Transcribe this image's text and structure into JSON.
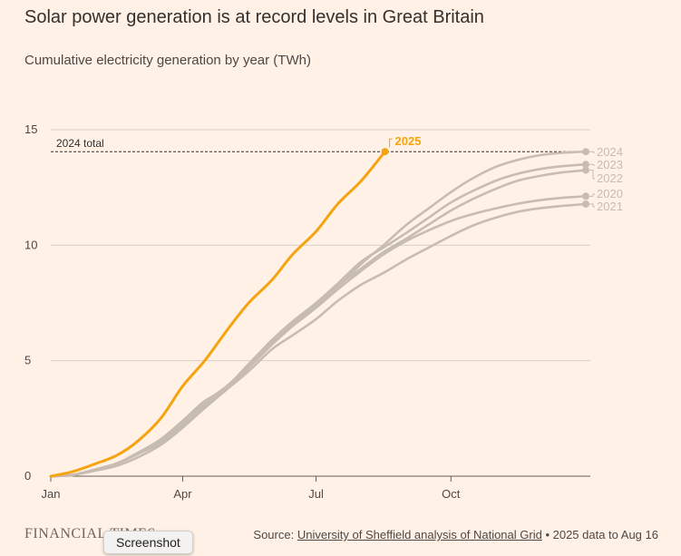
{
  "title": "Solar power generation is at record levels in Great Britain",
  "subtitle": "Cumulative electricity generation by year (TWh)",
  "footer": {
    "logo": "FINANCIAL TIMES",
    "source_prefix": "Source: ",
    "source_link": "University of Sheffield analysis of National Grid",
    "source_suffix": " • 2025 data to Aug 16"
  },
  "tooltip": {
    "label": "Screenshot"
  },
  "colors": {
    "highlight": "#f5a30f",
    "other": "#c7bcb2",
    "grid": "#d9cfc5",
    "axis": "#66605c"
  },
  "chart_data": {
    "type": "line",
    "title": "Solar power generation is at record levels in Great Britain",
    "subtitle": "Cumulative electricity generation by year (TWh)",
    "xlabel": "",
    "ylabel": "",
    "xlim": [
      0,
      365
    ],
    "ylim": [
      0,
      15
    ],
    "x_ticks": [
      {
        "value": 0,
        "label": "Jan"
      },
      {
        "value": 90,
        "label": "Apr"
      },
      {
        "value": 181,
        "label": "Jul"
      },
      {
        "value": 273,
        "label": "Oct"
      }
    ],
    "y_ticks": [
      {
        "value": 0,
        "label": "0"
      },
      {
        "value": 5,
        "label": "5"
      },
      {
        "value": 10,
        "label": "10"
      },
      {
        "value": 15,
        "label": "15"
      }
    ],
    "reference_line": {
      "value": 14.05,
      "label": "2024 total"
    },
    "x_units": "day of year",
    "series": [
      {
        "name": "2021",
        "highlight": false,
        "x": [
          0,
          15,
          31,
          45,
          59,
          75,
          90,
          105,
          120,
          135,
          151,
          165,
          181,
          196,
          212,
          227,
          243,
          258,
          273,
          288,
          304,
          319,
          334,
          349,
          365
        ],
        "y": [
          0,
          0.05,
          0.25,
          0.45,
          0.8,
          1.35,
          2.1,
          2.95,
          3.75,
          4.55,
          5.5,
          6.1,
          6.8,
          7.6,
          8.3,
          8.8,
          9.4,
          9.9,
          10.4,
          10.85,
          11.2,
          11.45,
          11.6,
          11.7,
          11.78
        ]
      },
      {
        "name": "2022",
        "highlight": false,
        "x": [
          0,
          15,
          31,
          45,
          59,
          75,
          90,
          105,
          120,
          135,
          151,
          165,
          181,
          196,
          212,
          227,
          243,
          258,
          273,
          288,
          304,
          319,
          334,
          349,
          365
        ],
        "y": [
          0,
          0.05,
          0.3,
          0.55,
          0.95,
          1.55,
          2.35,
          3.2,
          3.9,
          4.8,
          5.9,
          6.6,
          7.4,
          8.25,
          9.0,
          9.7,
          10.3,
          10.9,
          11.5,
          12.0,
          12.45,
          12.8,
          13.0,
          13.15,
          13.25
        ]
      },
      {
        "name": "2023",
        "highlight": false,
        "x": [
          0,
          15,
          31,
          45,
          59,
          75,
          90,
          105,
          120,
          135,
          151,
          165,
          181,
          196,
          212,
          227,
          243,
          258,
          273,
          288,
          304,
          319,
          334,
          349,
          365
        ],
        "y": [
          0,
          0.05,
          0.3,
          0.55,
          0.95,
          1.45,
          2.2,
          3.05,
          3.85,
          4.85,
          5.9,
          6.7,
          7.5,
          8.35,
          9.3,
          9.9,
          10.55,
          11.2,
          11.85,
          12.35,
          12.8,
          13.1,
          13.3,
          13.42,
          13.5
        ]
      },
      {
        "name": "2020",
        "highlight": false,
        "x": [
          0,
          15,
          31,
          45,
          59,
          75,
          90,
          105,
          120,
          135,
          151,
          165,
          181,
          196,
          212,
          227,
          243,
          258,
          273,
          288,
          304,
          319,
          334,
          349,
          365
        ],
        "y": [
          0,
          0.05,
          0.3,
          0.55,
          0.95,
          1.5,
          2.3,
          3.15,
          3.85,
          4.85,
          5.8,
          6.55,
          7.3,
          8.1,
          8.9,
          9.6,
          10.2,
          10.65,
          11.05,
          11.35,
          11.6,
          11.8,
          11.95,
          12.05,
          12.12
        ]
      },
      {
        "name": "2024",
        "highlight": false,
        "x": [
          0,
          15,
          31,
          45,
          59,
          75,
          90,
          105,
          120,
          135,
          151,
          165,
          181,
          196,
          212,
          227,
          243,
          258,
          273,
          288,
          304,
          319,
          334,
          349,
          365
        ],
        "y": [
          0,
          0.05,
          0.3,
          0.55,
          1.0,
          1.6,
          2.4,
          3.25,
          3.8,
          4.7,
          5.7,
          6.5,
          7.3,
          8.2,
          9.2,
          10.0,
          10.9,
          11.6,
          12.3,
          12.9,
          13.4,
          13.7,
          13.9,
          14.0,
          14.05
        ]
      },
      {
        "name": "2025",
        "highlight": true,
        "x": [
          0,
          15,
          31,
          45,
          59,
          75,
          90,
          105,
          120,
          135,
          151,
          165,
          181,
          196,
          212,
          228
        ],
        "y": [
          0,
          0.2,
          0.55,
          0.9,
          1.5,
          2.5,
          3.9,
          5.0,
          6.3,
          7.5,
          8.5,
          9.6,
          10.6,
          11.8,
          12.8,
          14.05
        ]
      }
    ]
  }
}
